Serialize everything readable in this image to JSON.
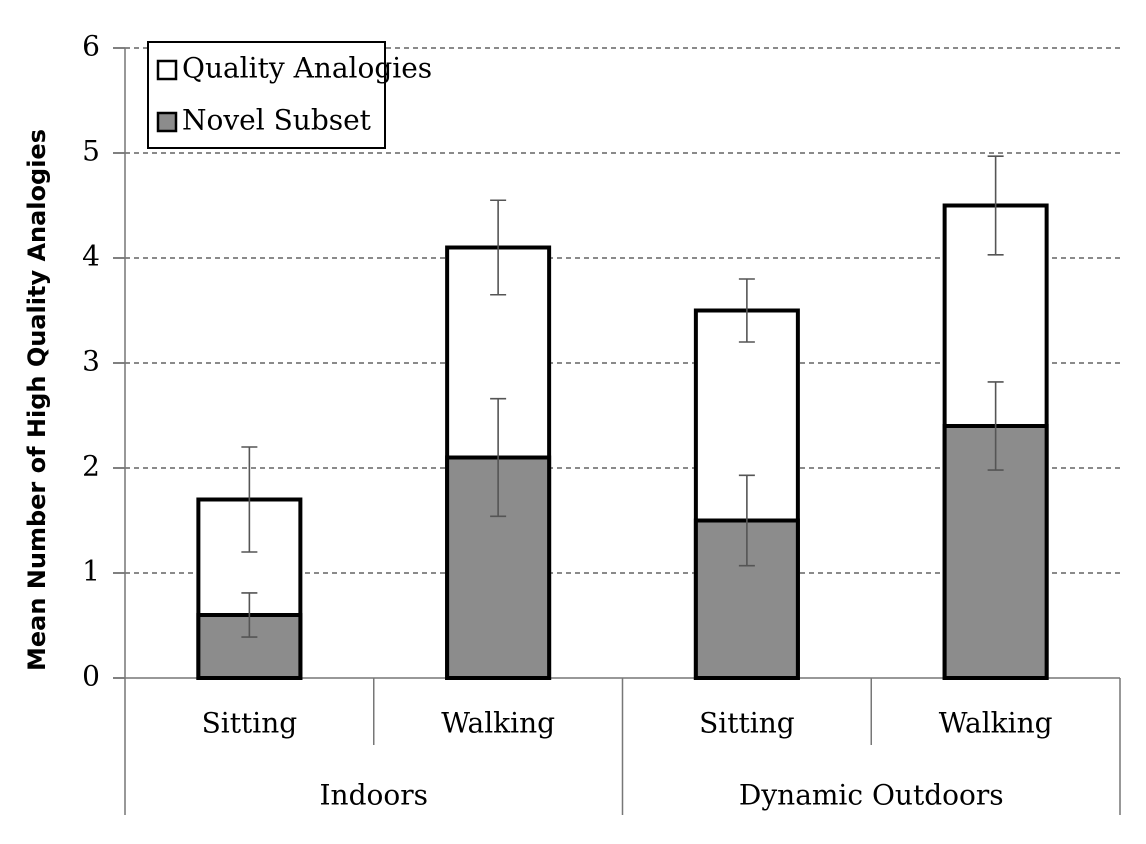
{
  "chart_data": {
    "type": "bar",
    "y_label": "Mean Number of High Quality Analogies",
    "categories": [
      "Sitting",
      "Walking",
      "Sitting",
      "Walking"
    ],
    "groups": [
      "Indoors",
      "Dynamic Outdoors"
    ],
    "series": [
      {
        "name": "Quality Analogies",
        "color": "#ffffff",
        "values": [
          1.7,
          4.1,
          3.5,
          4.5
        ],
        "errors": [
          0.5,
          0.45,
          0.3,
          0.47
        ]
      },
      {
        "name": "Novel Subset",
        "color": "#8c8c8c",
        "values": [
          0.6,
          2.1,
          1.5,
          2.4
        ],
        "errors": [
          0.21,
          0.56,
          0.43,
          0.42
        ]
      }
    ],
    "ylim": [
      0,
      6
    ],
    "yticks": [
      0,
      1,
      2,
      3,
      4,
      5,
      6
    ],
    "grid": true,
    "legend": "top-left"
  }
}
